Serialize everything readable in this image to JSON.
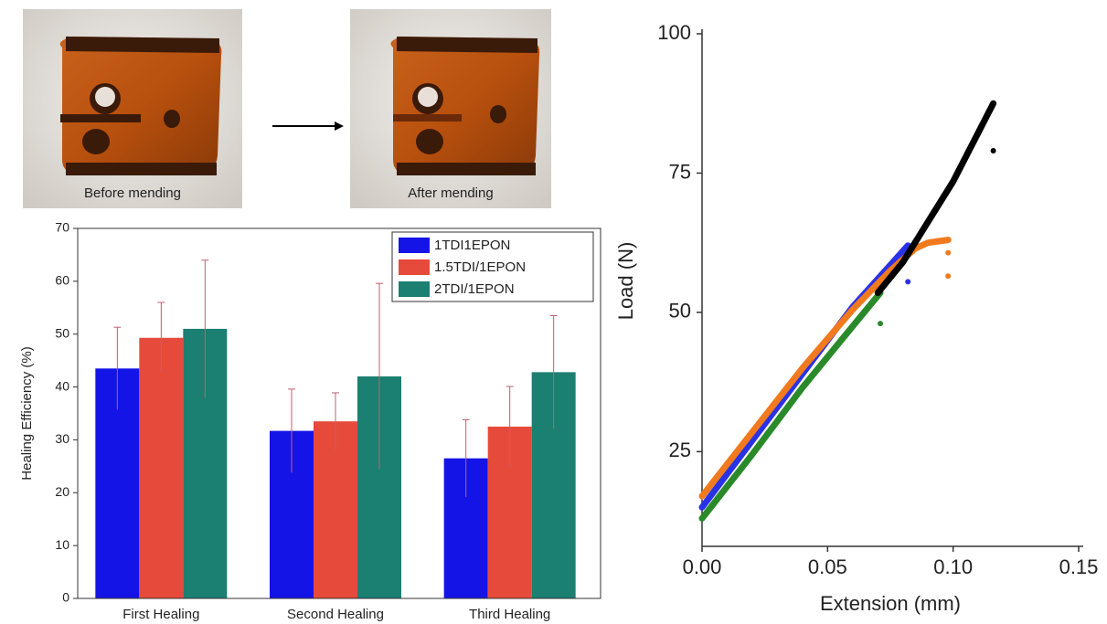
{
  "photos": [
    {
      "caption": "Before mending"
    },
    {
      "caption": "After mending"
    }
  ],
  "chart_data": [
    {
      "type": "bar",
      "y_label": "Healing Efficiency (%)",
      "categories": [
        "First Healing",
        "Second Healing",
        "Third Healing"
      ],
      "series": [
        {
          "name": "1TDI1EPON",
          "color": "#1414e6",
          "values": [
            43.5,
            31.7,
            26.5
          ],
          "errors": [
            7.8,
            7.9,
            7.3
          ]
        },
        {
          "name": "1.5TDI/1EPON",
          "color": "#e64a3a",
          "values": [
            49.3,
            33.5,
            32.5
          ],
          "errors": [
            6.7,
            5.4,
            7.6
          ]
        },
        {
          "name": "2TDI/1EPON",
          "color": "#1b7f72",
          "values": [
            51,
            42,
            42.8
          ],
          "errors": [
            13,
            17.6,
            10.7
          ]
        }
      ],
      "ylim": [
        0,
        70
      ],
      "yticks": [
        0,
        10,
        20,
        30,
        40,
        50,
        60,
        70
      ],
      "legend": "upper right",
      "error_color": "#c06070"
    },
    {
      "type": "line",
      "x_label": "Extension (mm)",
      "y_label": "Load (N)",
      "series": [
        {
          "color": "#2a32e6",
          "x": [
            0,
            0.02,
            0.04,
            0.06,
            0.075,
            0.082,
            null,
            0.082
          ],
          "values": [
            15,
            27,
            39,
            51,
            58.5,
            62,
            null,
            55.5
          ]
        },
        {
          "color": "#f07a1d",
          "x": [
            0,
            0.02,
            0.04,
            0.06,
            0.075,
            0.085,
            0.09,
            0.098,
            null,
            0.098,
            null,
            0.098
          ],
          "values": [
            17,
            28.5,
            40,
            50.5,
            57.5,
            61.5,
            62.5,
            63,
            null,
            60.7,
            null,
            56.5
          ]
        },
        {
          "color": "#2a8a2a",
          "x": [
            0,
            0.02,
            0.04,
            0.06,
            0.071,
            null,
            0.071
          ],
          "values": [
            13,
            24.5,
            36.5,
            47.5,
            53.5,
            null,
            48
          ]
        },
        {
          "color": "#000000",
          "x": [
            0.07,
            0.08,
            0.1,
            0.116,
            null,
            0.116
          ],
          "values": [
            53.5,
            59,
            73.5,
            87.5,
            null,
            79
          ]
        }
      ],
      "xlim": [
        0,
        0.15
      ],
      "xticks": [
        {
          "value": 0,
          "label": "0.00"
        },
        {
          "value": 0.05,
          "label": "0.05"
        },
        {
          "value": 0.1,
          "label": "0.10"
        },
        {
          "value": 0.15,
          "label": "0.15"
        }
      ],
      "ylim": [
        8,
        100
      ],
      "yticks": [
        25,
        50,
        75,
        100
      ]
    }
  ]
}
